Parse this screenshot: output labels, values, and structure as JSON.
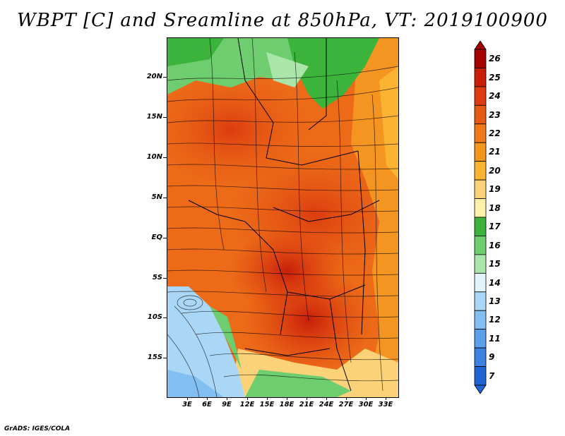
{
  "title": "WBPT [C] and Sreamline at 850hPa, VT: 2019100900",
  "footer": "GrADS: IGES/COLA",
  "map": {
    "y_ticks": [
      "20N",
      "15N",
      "10N",
      "5N",
      "EQ",
      "5S",
      "10S",
      "15S"
    ],
    "x_ticks": [
      "3E",
      "6E",
      "9E",
      "12E",
      "15E",
      "18E",
      "21E",
      "24E",
      "27E",
      "30E",
      "33E"
    ]
  },
  "colorbar": {
    "levels": [
      "26",
      "25",
      "24",
      "23",
      "22",
      "21",
      "20",
      "19",
      "18",
      "17",
      "16",
      "15",
      "14",
      "13",
      "12",
      "11",
      "9",
      "7"
    ],
    "colors": [
      "#a50000",
      "#c81e0a",
      "#dc3c0f",
      "#e65a14",
      "#f07818",
      "#f5961e",
      "#fab432",
      "#fcd278",
      "#fff0aa",
      "#3cb43c",
      "#6ecd6e",
      "#aae6aa",
      "#e1f5fa",
      "#aad7f5",
      "#82bef0",
      "#5aa0eb",
      "#3c82e1",
      "#1e64d2"
    ]
  }
}
